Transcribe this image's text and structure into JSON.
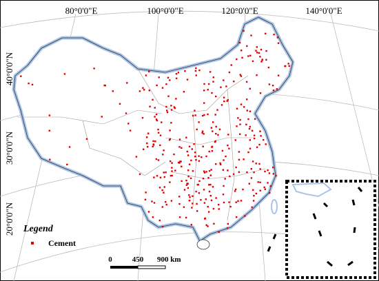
{
  "map": {
    "longitude_labels": [
      "80°0'0\"E",
      "100°0'0\"E",
      "120°0'0\"E",
      "140°0'0\"E"
    ],
    "latitude_labels": [
      "40°0'0\"N",
      "30°0'0\"N",
      "20°0'0\"N"
    ],
    "legend": {
      "title": "Legend",
      "items": [
        "Cement"
      ]
    },
    "scale_bar": [
      "0",
      "450",
      "900 km"
    ]
  }
}
